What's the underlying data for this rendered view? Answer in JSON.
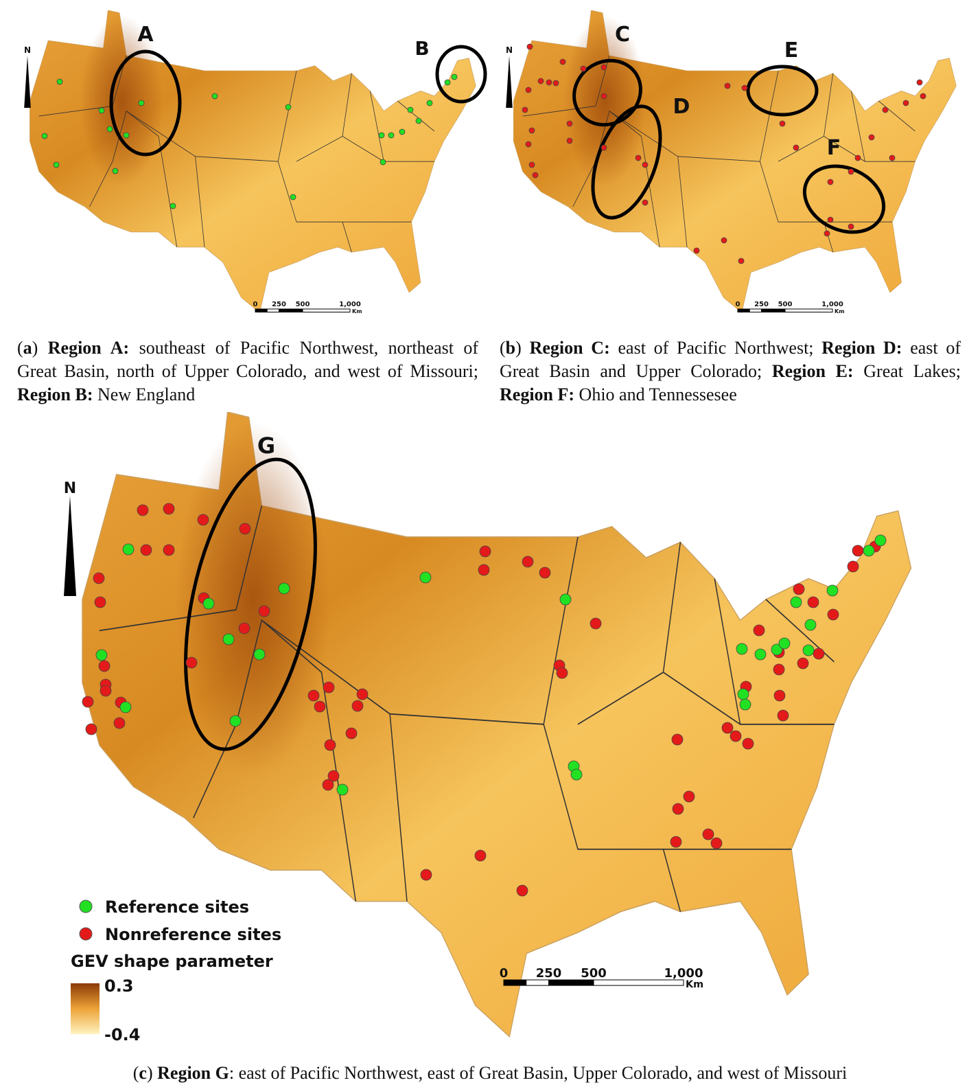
{
  "region_labels": [
    "A",
    "B",
    "C",
    "D",
    "E",
    "F",
    "G"
  ],
  "north": "N",
  "scale": [
    "0",
    "250",
    "500",
    "1,000",
    "Km"
  ],
  "legend": {
    "reference": "Reference sites",
    "nonreference": "Nonreference sites",
    "title": "GEV shape parameter",
    "max": "0.3",
    "min": "-0.4"
  },
  "captions": {
    "a": [
      "(",
      "a",
      ")",
      "Region A:",
      "southeast of Pacific Northwest, northeast of Great Basin, north of Upper Colorado, and west of Missouri;",
      "Region B:",
      "New England"
    ],
    "b": [
      "(",
      "b",
      ")",
      "Region C:",
      "east of Pacific Northwest;",
      "Region D:",
      "east of Great Basin and Upper Colorado;",
      "Region E:",
      "Great Lakes;",
      "Region F:",
      "Ohio and Tennessesee"
    ],
    "c": [
      "(",
      "c",
      ")",
      "Region G",
      ": east of Pacific Northwest, east of Great Basin, Upper Colorado, and west of Missouri"
    ]
  }
}
